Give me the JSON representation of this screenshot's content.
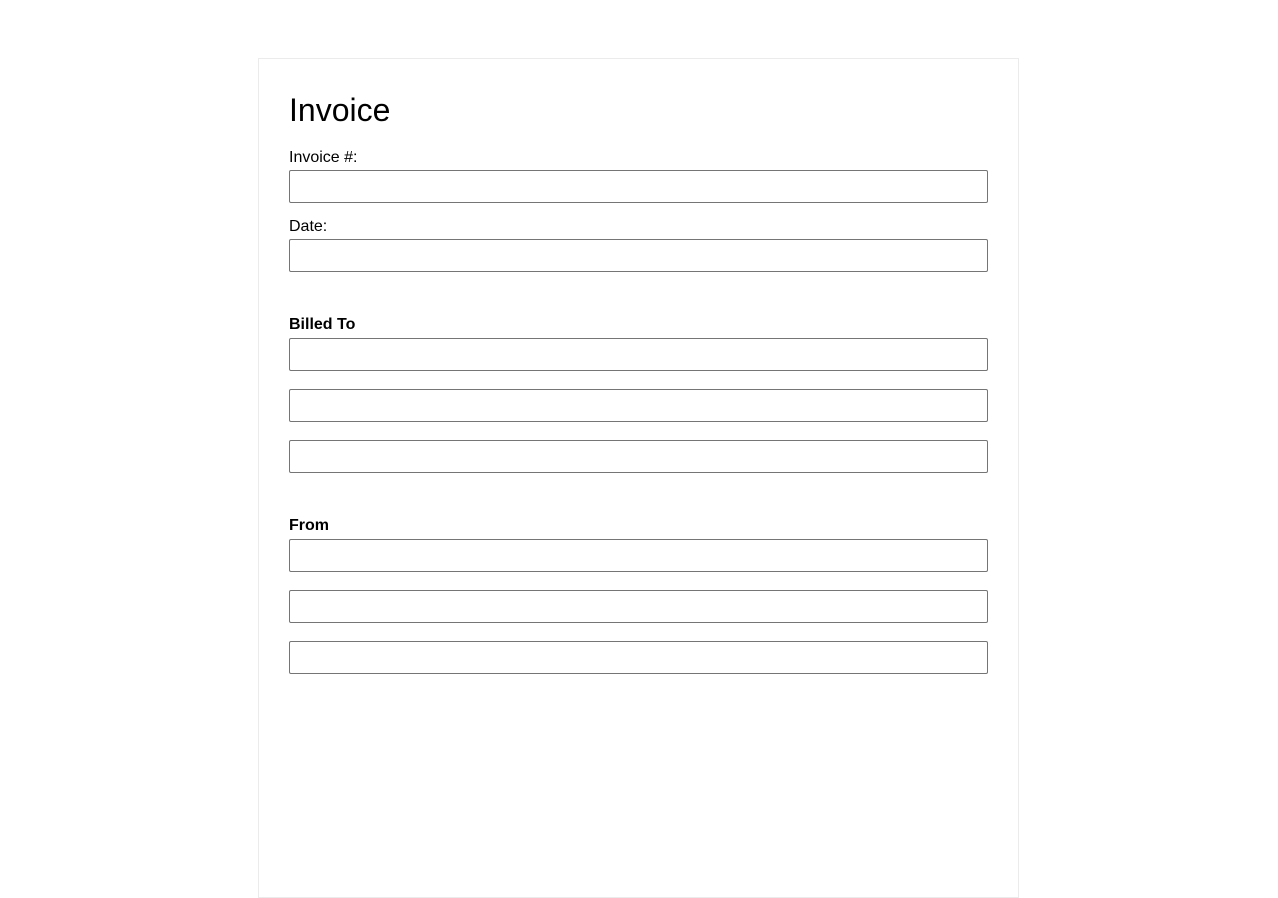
{
  "form": {
    "title": "Invoice",
    "invoice_number": {
      "label": "Invoice #:",
      "value": ""
    },
    "date": {
      "label": "Date:",
      "value": ""
    },
    "billed_to": {
      "heading": "Billed To",
      "line1": "",
      "line2": "",
      "line3": ""
    },
    "from": {
      "heading": "From",
      "line1": "",
      "line2": "",
      "line3": ""
    }
  }
}
